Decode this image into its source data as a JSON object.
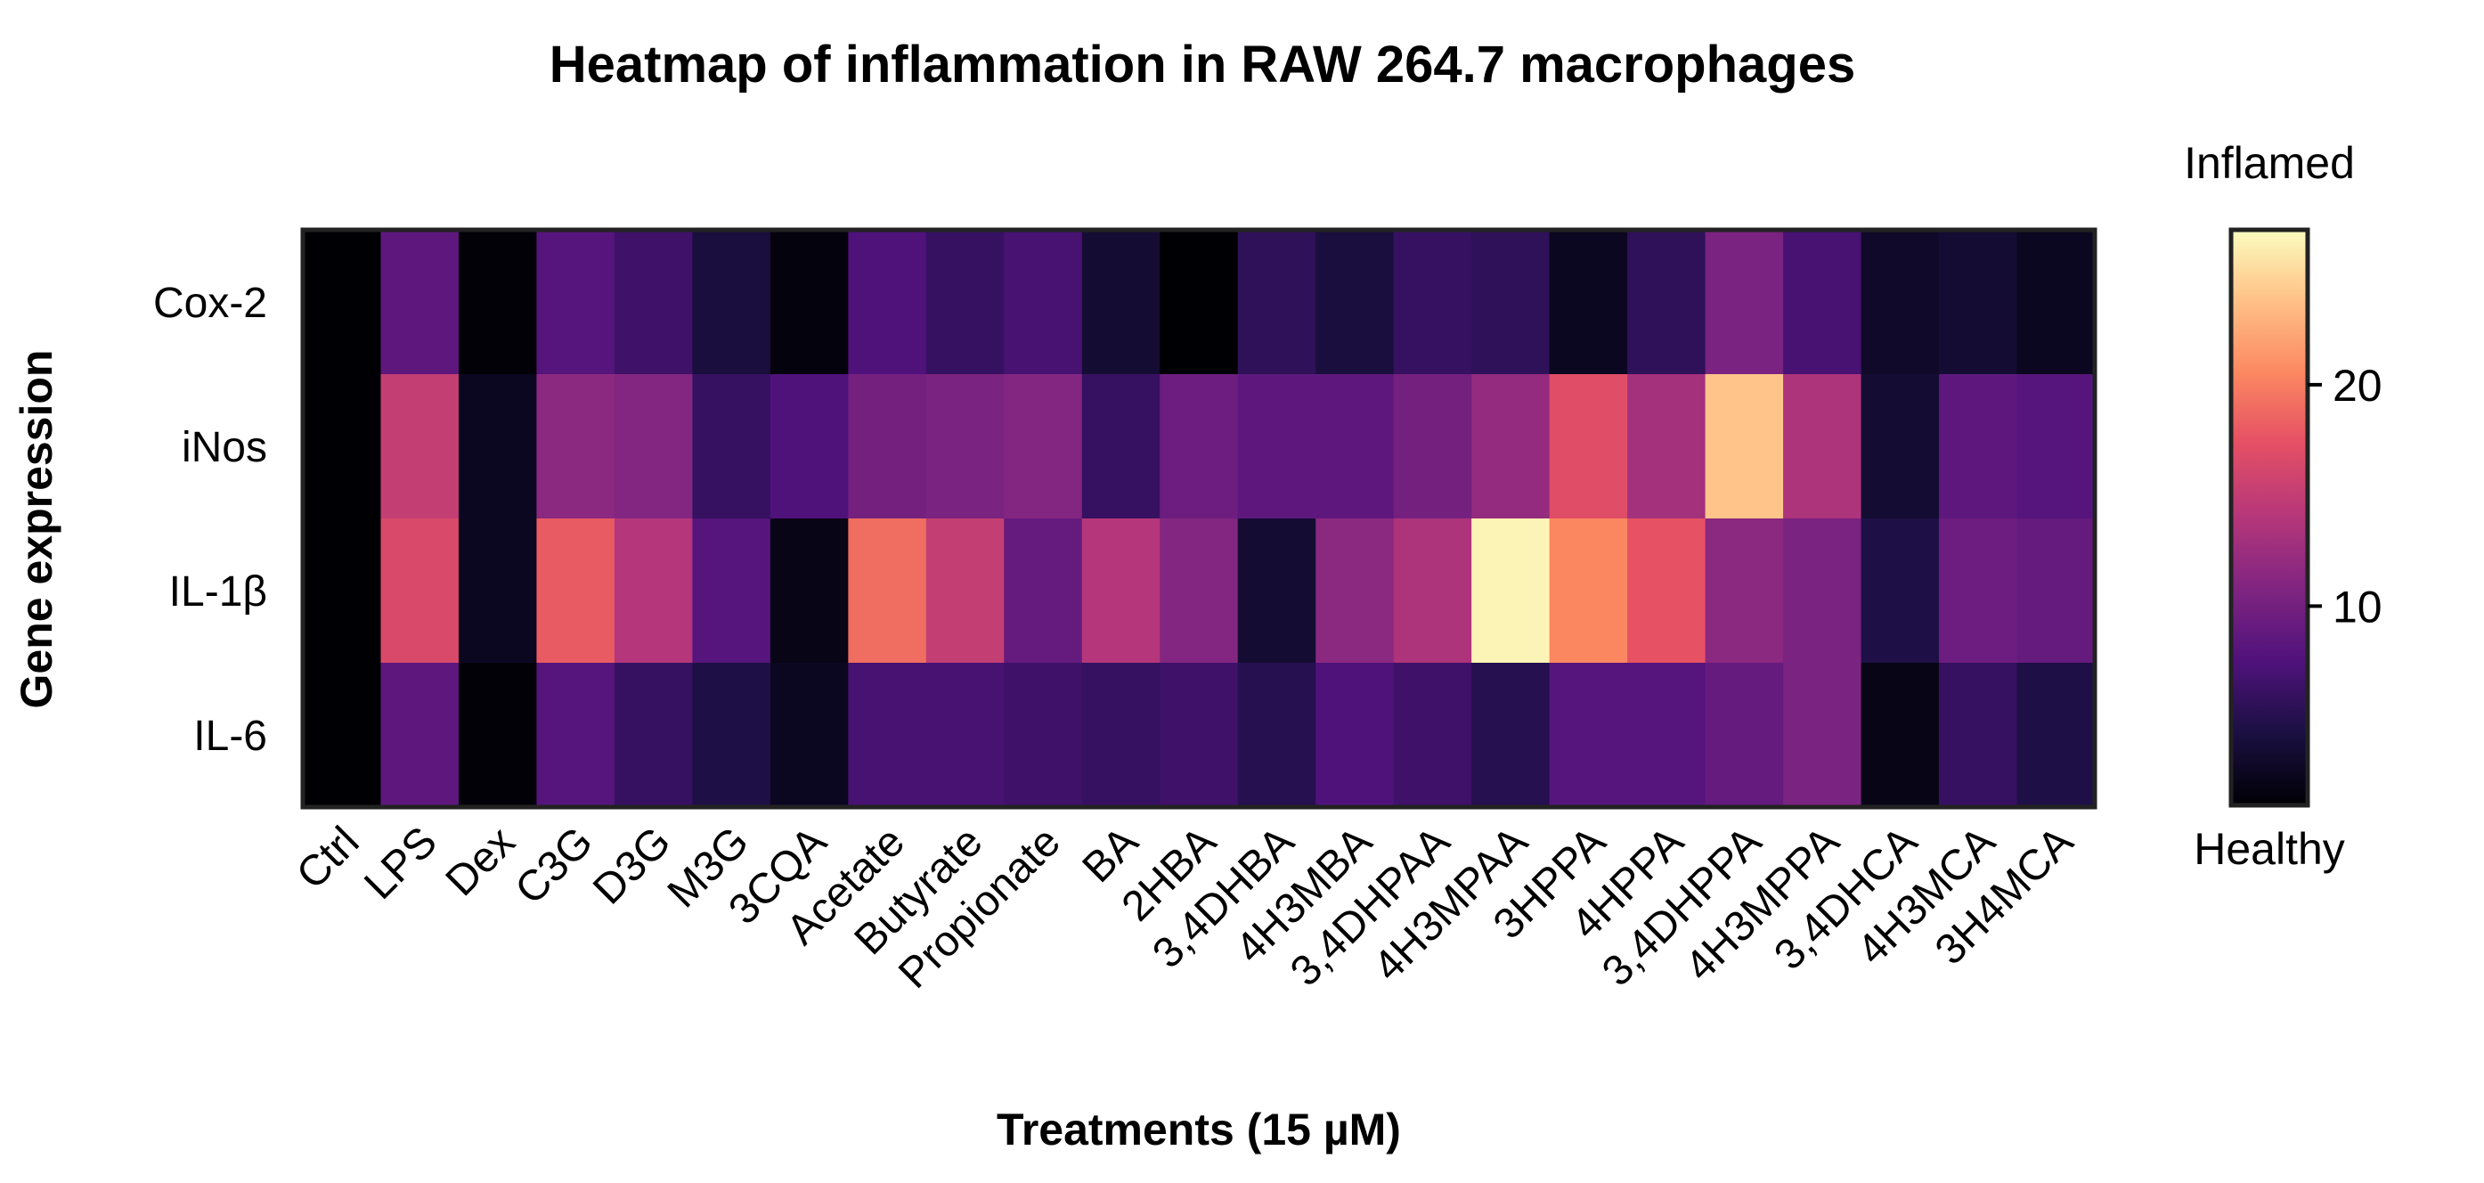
{
  "chart_data": {
    "type": "heatmap",
    "title": "Heatmap of inflammation in RAW 264.7 macrophages",
    "xlabel": "Treatments (15 µM)",
    "ylabel": "Gene expression",
    "rows": [
      "Cox-2",
      "iNos",
      "IL-1β",
      "IL-6"
    ],
    "columns": [
      "Ctrl",
      "LPS",
      "Dex",
      "C3G",
      "D3G",
      "M3G",
      "3CQA",
      "Acetate",
      "Butyrate",
      "Propionate",
      "BA",
      "2HBA",
      "3,4DHBA",
      "4H3MBA",
      "3,4DHPAA",
      "4H3MPAA",
      "3HPPA",
      "4HPPA",
      "3,4DHPPA",
      "4H3MPPA",
      "3,4DHCA",
      "4H3MCA",
      "3H4MCA"
    ],
    "values": [
      [
        1.0,
        8.5,
        1.2,
        8.0,
        6.5,
        4.0,
        1.5,
        7.5,
        6.0,
        7.0,
        3.5,
        1.0,
        5.5,
        4.0,
        6.0,
        5.5,
        2.5,
        5.5,
        10.5,
        7.0,
        3.0,
        3.5,
        2.5
      ],
      [
        1.0,
        15.0,
        2.5,
        11.5,
        11.0,
        6.0,
        7.5,
        10.0,
        10.5,
        11.0,
        6.0,
        9.5,
        8.5,
        8.5,
        10.0,
        12.0,
        17.0,
        13.0,
        24.0,
        13.5,
        3.5,
        8.5,
        8.0
      ],
      [
        1.0,
        16.5,
        2.5,
        18.0,
        14.0,
        8.0,
        2.0,
        19.0,
        15.0,
        9.0,
        14.0,
        11.0,
        3.5,
        11.5,
        13.5,
        26.5,
        20.5,
        17.5,
        11.5,
        10.5,
        4.5,
        9.5,
        9.0
      ],
      [
        1.0,
        8.5,
        1.2,
        8.0,
        6.0,
        4.5,
        2.5,
        7.0,
        7.0,
        6.5,
        6.0,
        6.5,
        5.0,
        7.5,
        6.5,
        5.0,
        8.0,
        8.0,
        9.0,
        10.5,
        2.0,
        6.0,
        4.5
      ]
    ],
    "colorbar": {
      "range": [
        1,
        27
      ],
      "ticks": [
        10,
        20
      ],
      "top_label": "Inflamed",
      "bottom_label": "Healthy",
      "colormap": "magma"
    }
  }
}
